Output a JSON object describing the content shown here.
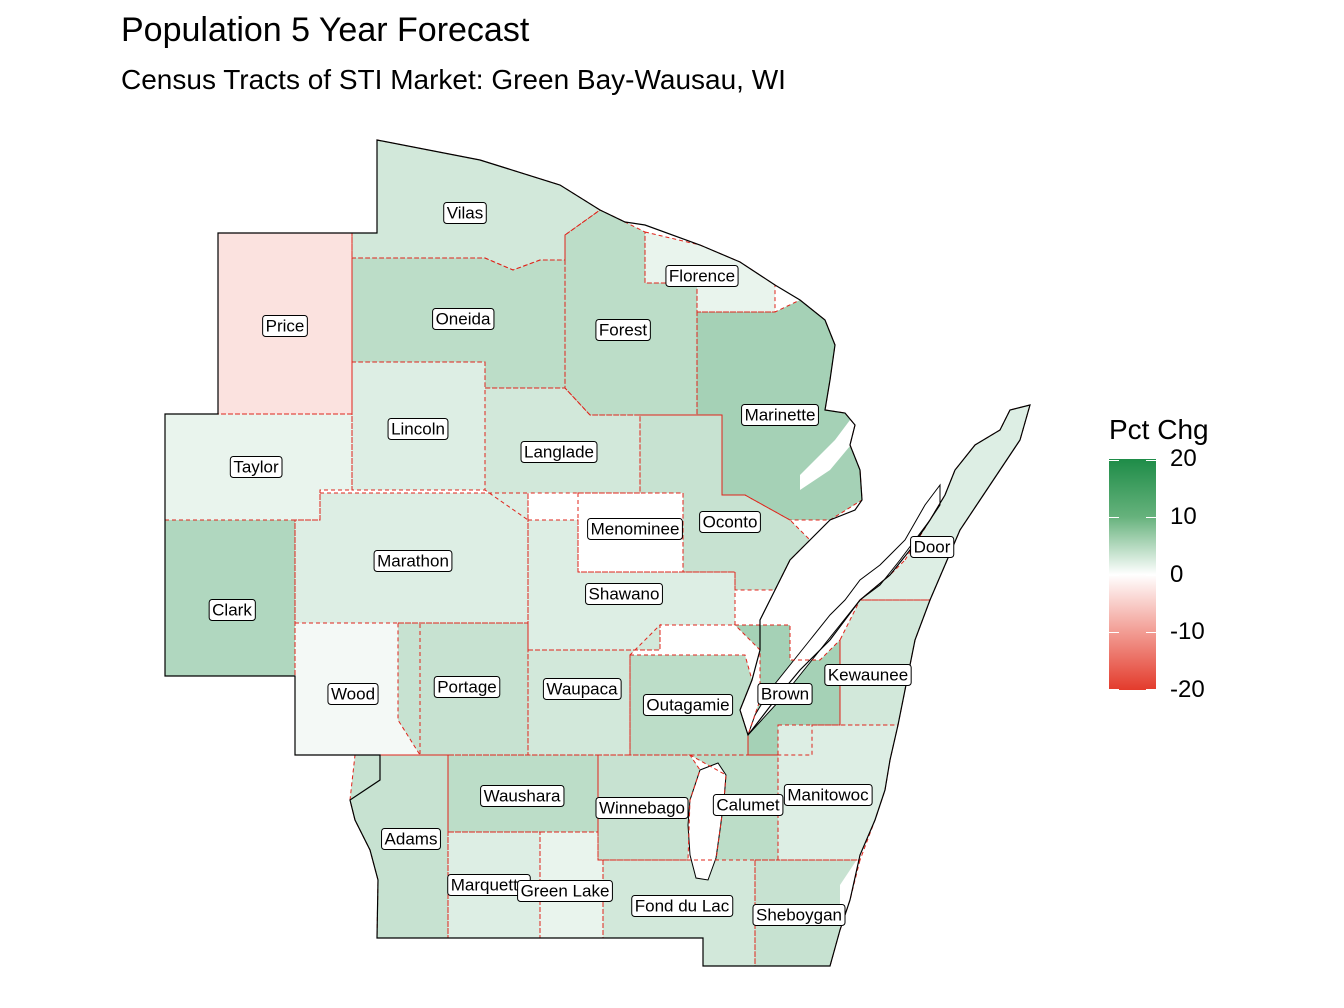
{
  "title": "Population 5 Year Forecast",
  "subtitle": "Census Tracts of STI Market: Green Bay-Wausau, WI",
  "legend": {
    "title": "Pct Chg",
    "breaks": [
      "20",
      "10",
      "0",
      "-10",
      "-20"
    ],
    "range": [
      -20,
      20
    ],
    "colors": {
      "high": "#1e8c48",
      "mid": "#ffffff",
      "low": "#e33b2c"
    }
  },
  "map": {
    "outline_color": "#000000",
    "county_border_color": "#e0241b",
    "counties": [
      {
        "name": "Vilas",
        "value": 4
      },
      {
        "name": "Florence",
        "value": 2
      },
      {
        "name": "Oneida",
        "value": 6
      },
      {
        "name": "Price",
        "value": -3
      },
      {
        "name": "Forest",
        "value": 6
      },
      {
        "name": "Marinette",
        "value": 8
      },
      {
        "name": "Lincoln",
        "value": 3
      },
      {
        "name": "Taylor",
        "value": 2
      },
      {
        "name": "Langlade",
        "value": 4
      },
      {
        "name": "Menominee",
        "value": 0
      },
      {
        "name": "Oconto",
        "value": 5
      },
      {
        "name": "Door",
        "value": 3
      },
      {
        "name": "Marathon",
        "value": 3
      },
      {
        "name": "Shawano",
        "value": 3
      },
      {
        "name": "Clark",
        "value": 7
      },
      {
        "name": "Kewaunee",
        "value": 4
      },
      {
        "name": "Wood",
        "value": 1
      },
      {
        "name": "Portage",
        "value": 5
      },
      {
        "name": "Waupaca",
        "value": 4
      },
      {
        "name": "Outagamie",
        "value": 6
      },
      {
        "name": "Brown",
        "value": 8
      },
      {
        "name": "Waushara",
        "value": 6
      },
      {
        "name": "Winnebago",
        "value": 5
      },
      {
        "name": "Calumet",
        "value": 6
      },
      {
        "name": "Manitowoc",
        "value": 3
      },
      {
        "name": "Adams",
        "value": 5
      },
      {
        "name": "Marquette",
        "value": 3
      },
      {
        "name": "Green Lake",
        "value": 2
      },
      {
        "name": "Fond du Lac",
        "value": 4
      },
      {
        "name": "Sheboygan",
        "value": 5
      }
    ]
  }
}
